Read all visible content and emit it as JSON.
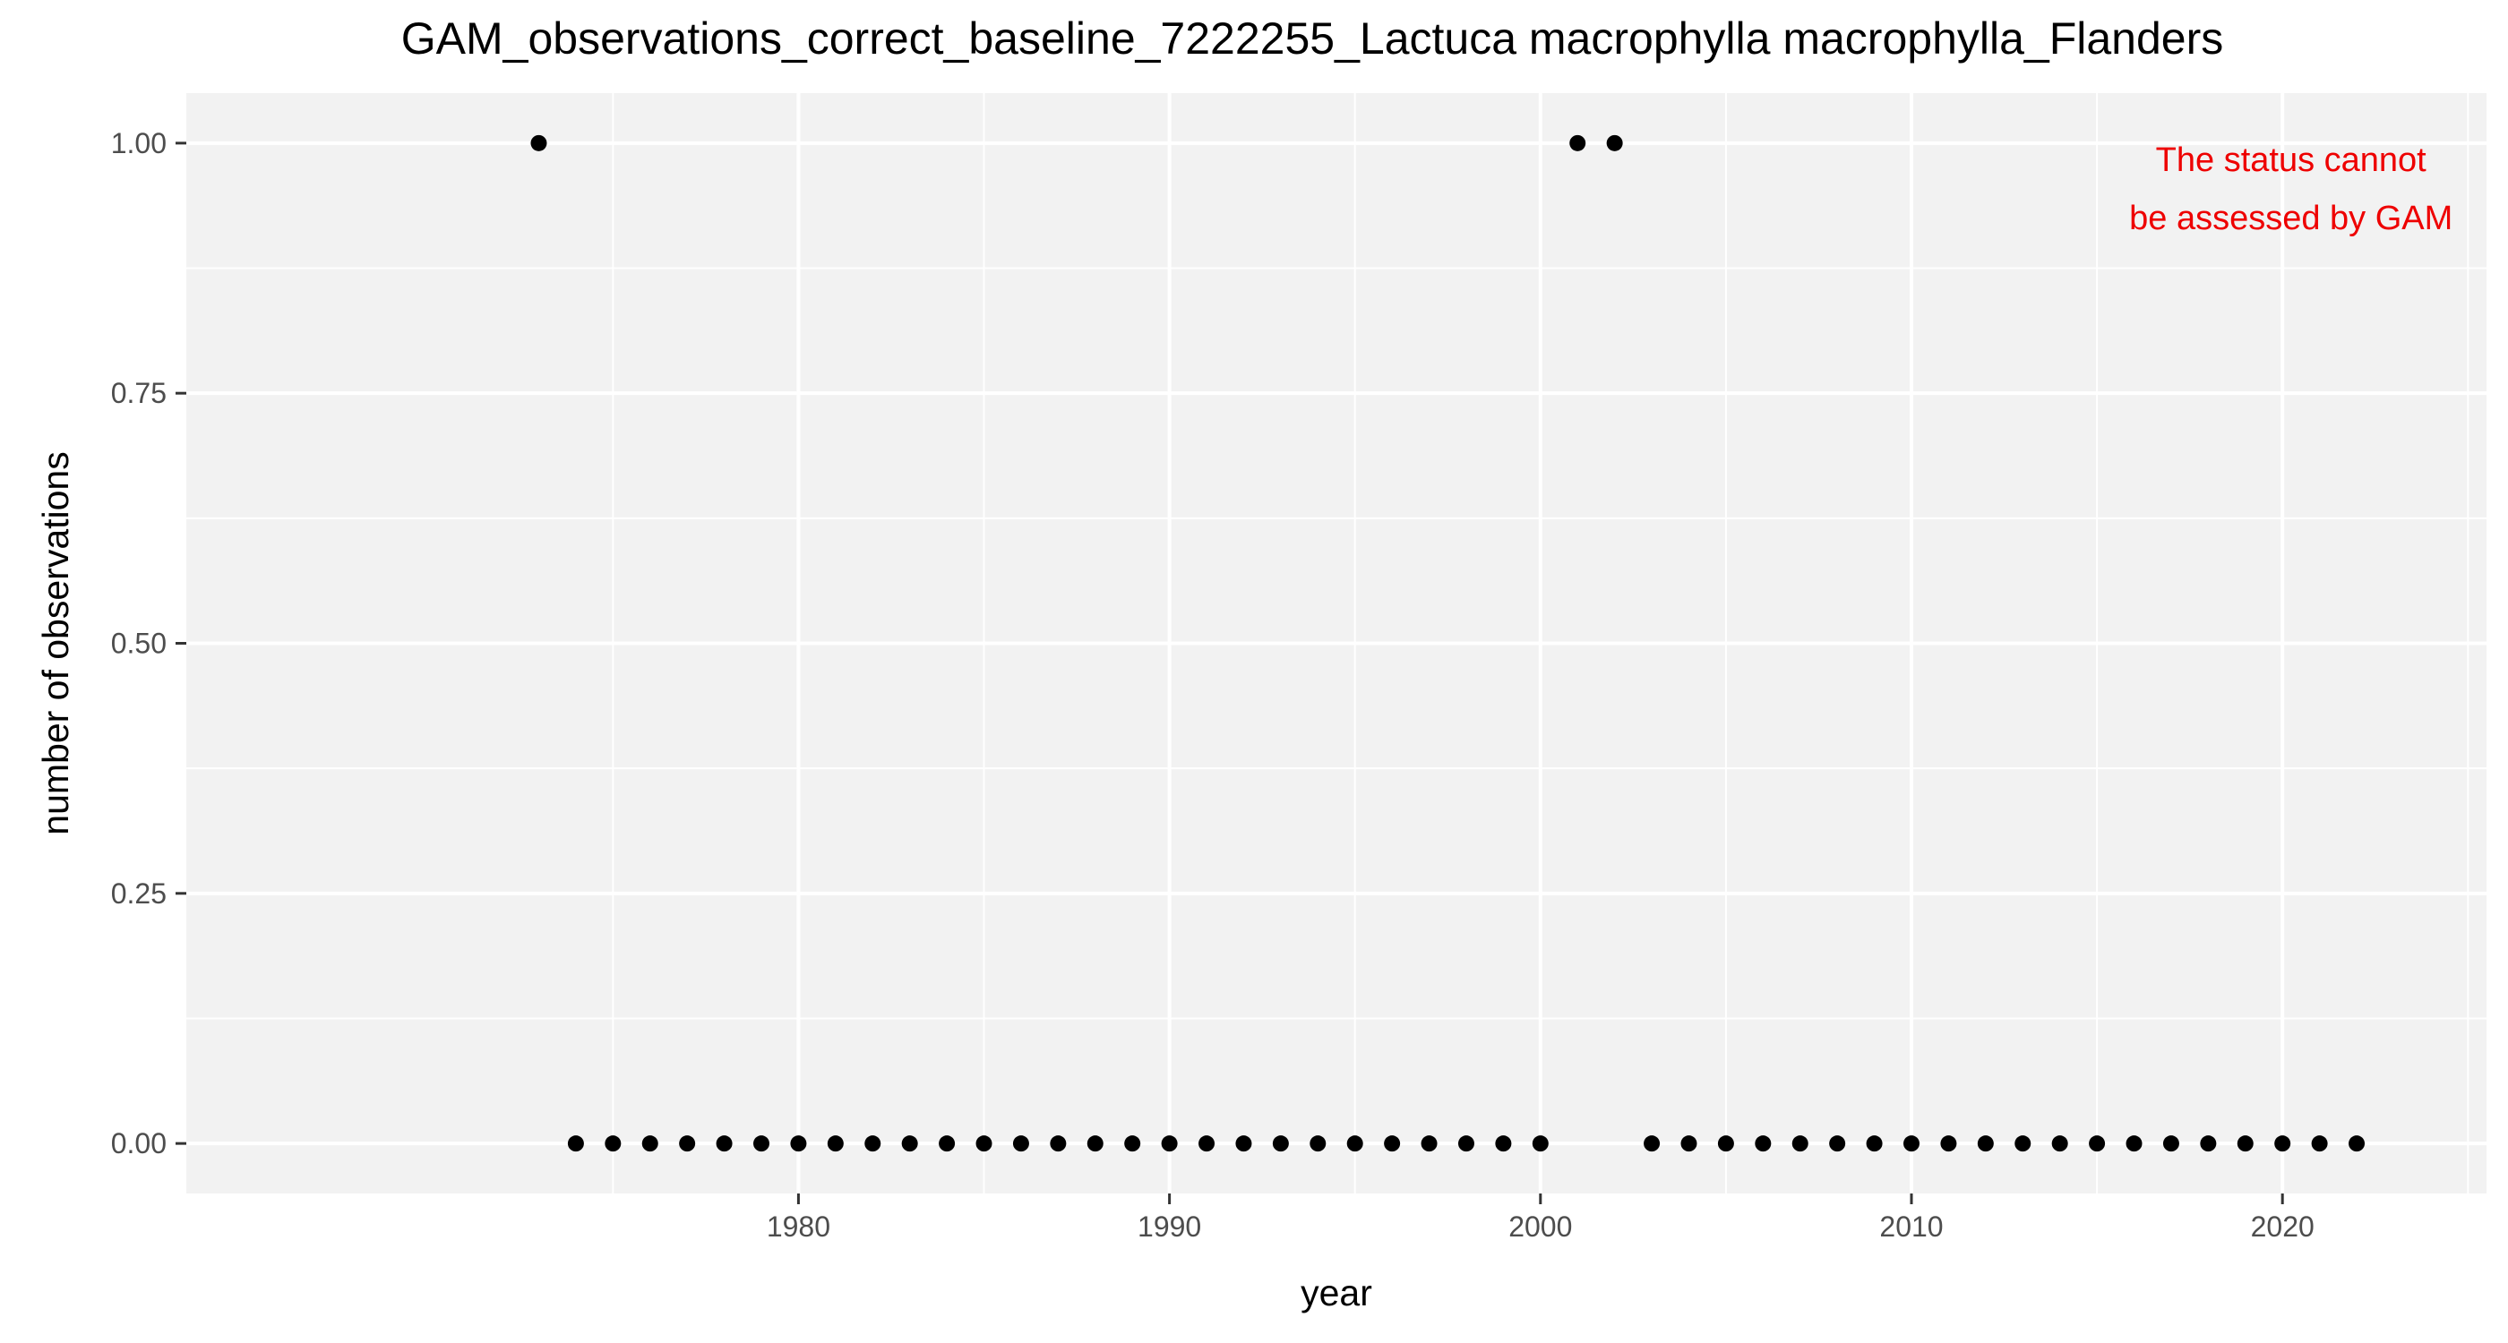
{
  "chart_data": {
    "type": "scatter",
    "title": "GAM_observations_correct_baseline_7222255_Lactuca macrophylla macrophylla_Flanders",
    "xlabel": "year",
    "ylabel": "number of observations",
    "xlim": [
      1963.5,
      2025.5
    ],
    "ylim": [
      -0.05,
      1.05
    ],
    "x_ticks": [
      1980,
      1990,
      2000,
      2010,
      2020
    ],
    "x_tick_labels": [
      "1980",
      "1990",
      "2000",
      "2010",
      "2020"
    ],
    "y_ticks": [
      0,
      0.25,
      0.5,
      0.75,
      1.0
    ],
    "y_tick_labels": [
      "0.00",
      "0.25",
      "0.50",
      "0.75",
      "1.00"
    ],
    "grid": true,
    "background_color": "#f2f2f2",
    "gridline_color": "#ffffff",
    "point_color": "#000000",
    "annotation": {
      "lines": [
        "The status cannot",
        "be assessed by GAM"
      ],
      "color": "#ee0000",
      "placement": "top-right"
    },
    "points": [
      {
        "x": 1973,
        "y": 1
      },
      {
        "x": 1974,
        "y": 0
      },
      {
        "x": 1975,
        "y": 0
      },
      {
        "x": 1976,
        "y": 0
      },
      {
        "x": 1977,
        "y": 0
      },
      {
        "x": 1978,
        "y": 0
      },
      {
        "x": 1979,
        "y": 0
      },
      {
        "x": 1980,
        "y": 0
      },
      {
        "x": 1981,
        "y": 0
      },
      {
        "x": 1982,
        "y": 0
      },
      {
        "x": 1983,
        "y": 0
      },
      {
        "x": 1984,
        "y": 0
      },
      {
        "x": 1985,
        "y": 0
      },
      {
        "x": 1986,
        "y": 0
      },
      {
        "x": 1987,
        "y": 0
      },
      {
        "x": 1988,
        "y": 0
      },
      {
        "x": 1989,
        "y": 0
      },
      {
        "x": 1990,
        "y": 0
      },
      {
        "x": 1991,
        "y": 0
      },
      {
        "x": 1992,
        "y": 0
      },
      {
        "x": 1993,
        "y": 0
      },
      {
        "x": 1994,
        "y": 0
      },
      {
        "x": 1995,
        "y": 0
      },
      {
        "x": 1996,
        "y": 0
      },
      {
        "x": 1997,
        "y": 0
      },
      {
        "x": 1998,
        "y": 0
      },
      {
        "x": 1999,
        "y": 0
      },
      {
        "x": 2000,
        "y": 0
      },
      {
        "x": 2001,
        "y": 1
      },
      {
        "x": 2002,
        "y": 1
      },
      {
        "x": 2003,
        "y": 0
      },
      {
        "x": 2004,
        "y": 0
      },
      {
        "x": 2005,
        "y": 0
      },
      {
        "x": 2006,
        "y": 0
      },
      {
        "x": 2007,
        "y": 0
      },
      {
        "x": 2008,
        "y": 0
      },
      {
        "x": 2009,
        "y": 0
      },
      {
        "x": 2010,
        "y": 0
      },
      {
        "x": 2011,
        "y": 0
      },
      {
        "x": 2012,
        "y": 0
      },
      {
        "x": 2013,
        "y": 0
      },
      {
        "x": 2014,
        "y": 0
      },
      {
        "x": 2015,
        "y": 0
      },
      {
        "x": 2016,
        "y": 0
      },
      {
        "x": 2017,
        "y": 0
      },
      {
        "x": 2018,
        "y": 0
      },
      {
        "x": 2019,
        "y": 0
      },
      {
        "x": 2020,
        "y": 0
      },
      {
        "x": 2021,
        "y": 0
      },
      {
        "x": 2022,
        "y": 0
      }
    ]
  }
}
